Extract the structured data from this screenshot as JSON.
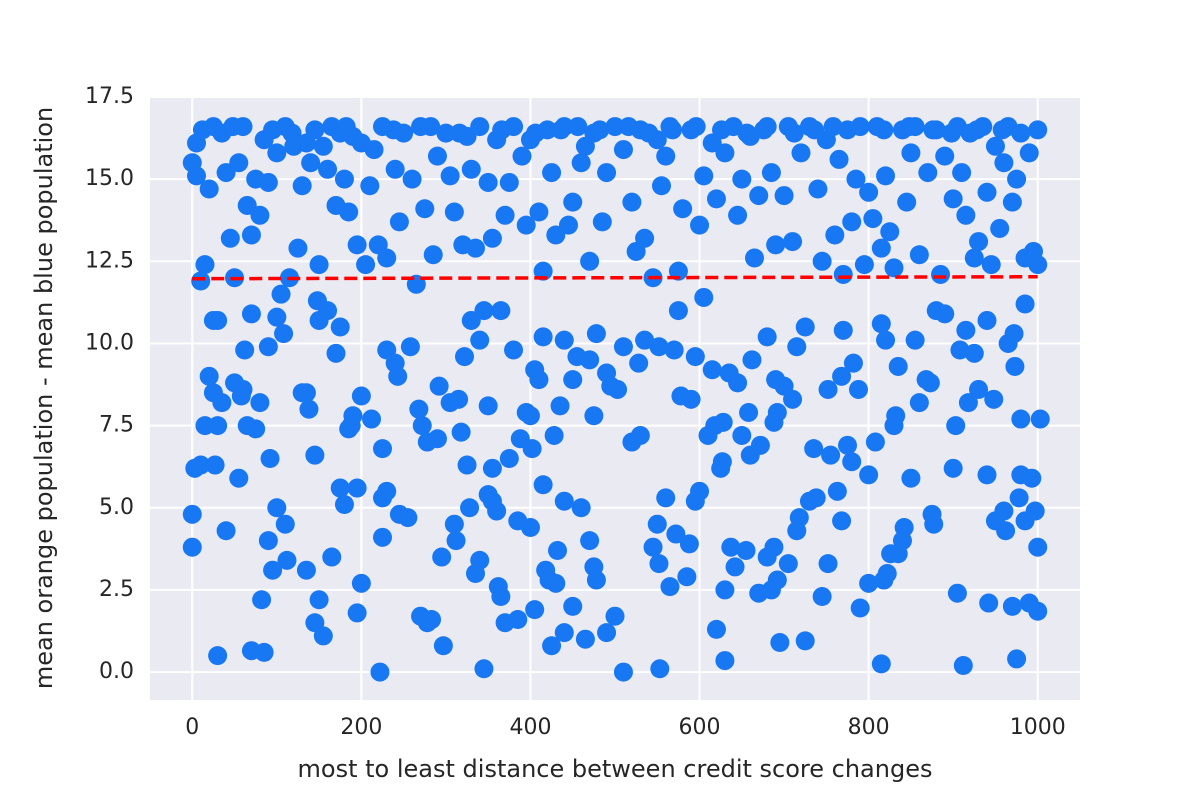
{
  "chart_data": {
    "type": "scatter",
    "x_label": "most to least distance between credit score changes",
    "y_label": "mean orange population - mean blue population",
    "color": "#1877f2",
    "x": [
      0,
      0,
      3,
      10,
      27,
      30,
      40,
      55,
      70,
      85,
      82,
      90,
      95,
      100,
      110,
      112,
      135,
      145,
      150,
      155,
      165,
      175,
      180,
      195,
      195,
      200,
      222,
      225,
      225,
      230,
      245,
      255,
      270,
      278,
      283,
      295,
      297,
      310,
      312,
      325,
      328,
      335,
      340,
      345,
      350,
      355,
      360,
      362,
      365,
      370,
      385,
      385,
      400,
      405,
      415,
      418,
      422,
      425,
      430,
      432,
      440,
      440,
      450,
      460,
      465,
      470,
      475,
      478,
      490,
      500,
      510,
      530,
      545,
      552,
      553,
      550,
      560,
      565,
      572,
      585,
      588,
      600,
      595,
      620,
      627,
      630,
      630,
      637,
      642,
      655,
      660,
      670,
      680,
      685,
      688,
      692,
      695,
      705,
      715,
      718,
      725,
      730,
      738,
      745,
      752,
      763,
      768,
      780,
      790,
      800,
      815,
      818,
      822,
      826,
      835,
      840,
      842,
      850,
      875,
      877,
      905,
      912,
      940,
      942,
      950,
      960,
      962,
      970,
      975,
      978,
      985,
      990,
      993,
      997,
      1000,
      1000,
      980,
      15,
      20,
      25,
      25,
      30,
      30,
      35,
      50,
      58,
      60,
      62,
      65,
      70,
      75,
      80,
      90,
      92,
      100,
      105,
      108,
      130,
      135,
      138,
      145,
      148,
      150,
      160,
      170,
      175,
      185,
      190,
      188,
      200,
      212,
      225,
      230,
      240,
      243,
      258,
      268,
      272,
      278,
      290,
      292,
      305,
      315,
      318,
      322,
      330,
      340,
      345,
      350,
      355,
      365,
      375,
      380,
      388,
      395,
      400,
      402,
      405,
      410,
      415,
      428,
      435,
      440,
      450,
      455,
      470,
      475,
      478,
      490,
      495,
      503,
      510,
      520,
      528,
      535,
      552,
      570,
      575,
      578,
      590,
      595,
      605,
      610,
      615,
      618,
      625,
      628,
      635,
      645,
      650,
      658,
      662,
      672,
      680,
      688,
      690,
      692,
      700,
      710,
      715,
      725,
      735,
      752,
      755,
      768,
      770,
      775,
      782,
      788,
      800,
      808,
      815,
      820,
      830,
      832,
      835,
      855,
      860,
      868,
      873,
      880,
      890,
      900,
      903,
      908,
      915,
      918,
      925,
      930,
      940,
      948,
      965,
      972,
      973,
      980,
      985,
      1003,
      0,
      5,
      5,
      10,
      15,
      20,
      25,
      35,
      40,
      45,
      50,
      55,
      60,
      65,
      70,
      75,
      80,
      85,
      90,
      100,
      110,
      115,
      120,
      125,
      130,
      140,
      145,
      150,
      155,
      160,
      165,
      170,
      175,
      180,
      185,
      190,
      195,
      200,
      205,
      210,
      215,
      220,
      225,
      230,
      240,
      245,
      250,
      260,
      265,
      270,
      275,
      285,
      290,
      300,
      305,
      310,
      320,
      325,
      330,
      335,
      340,
      350,
      355,
      360,
      370,
      375,
      380,
      390,
      395,
      400,
      410,
      415,
      420,
      425,
      430,
      440,
      445,
      450,
      460,
      465,
      470,
      475,
      485,
      490,
      500,
      510,
      520,
      525,
      530,
      535,
      545,
      550,
      555,
      560,
      565,
      575,
      580,
      590,
      600,
      605,
      615,
      620,
      630,
      640,
      645,
      650,
      660,
      665,
      670,
      680,
      685,
      690,
      700,
      705,
      710,
      720,
      730,
      740,
      745,
      750,
      760,
      765,
      770,
      775,
      780,
      785,
      790,
      795,
      800,
      805,
      810,
      815,
      820,
      825,
      830,
      840,
      845,
      850,
      855,
      860,
      870,
      880,
      885,
      890,
      900,
      905,
      910,
      915,
      920,
      925,
      930,
      935,
      940,
      945,
      950,
      955,
      960,
      965,
      970,
      975,
      980,
      985,
      990,
      995,
      1000,
      1000,
      12,
      48,
      95,
      118,
      135,
      182,
      238,
      282,
      316,
      366,
      406,
      436,
      456,
      482,
      516,
      540,
      568,
      596,
      626,
      656,
      676,
      712,
      736,
      758,
      818,
      848,
      876,
      898,
      928,
      958
    ],
    "y": [
      4.8,
      3.8,
      6.2,
      6.3,
      6.3,
      0.5,
      4.3,
      5.9,
      0.65,
      0.6,
      2.2,
      4.0,
      3.1,
      5.0,
      4.5,
      3.4,
      3.1,
      1.5,
      2.2,
      1.1,
      3.5,
      5.6,
      5.1,
      5.6,
      1.8,
      2.7,
      0.0,
      4.1,
      5.3,
      5.5,
      4.8,
      4.7,
      1.7,
      1.5,
      1.6,
      3.5,
      0.8,
      4.5,
      4.0,
      6.3,
      5.0,
      3.0,
      3.4,
      0.1,
      5.4,
      5.2,
      4.9,
      2.6,
      2.3,
      1.5,
      1.6,
      4.6,
      4.4,
      1.9,
      5.7,
      3.1,
      2.8,
      0.8,
      2.7,
      3.7,
      1.2,
      5.2,
      2.0,
      5.0,
      1.0,
      4.0,
      3.2,
      2.8,
      1.2,
      1.7,
      0.0,
      7.2,
      3.8,
      3.3,
      0.1,
      4.5,
      5.3,
      2.6,
      4.2,
      2.9,
      3.9,
      5.5,
      5.2,
      1.3,
      6.4,
      0.35,
      2.5,
      3.8,
      3.2,
      3.7,
      6.6,
      2.4,
      3.5,
      2.5,
      3.8,
      2.8,
      0.9,
      3.3,
      4.3,
      4.7,
      0.95,
      5.2,
      5.3,
      2.3,
      3.3,
      5.5,
      4.6,
      6.4,
      1.95,
      2.7,
      0.25,
      2.8,
      3.0,
      3.6,
      3.6,
      4.0,
      4.4,
      5.9,
      4.8,
      4.5,
      2.4,
      0.2,
      6.0,
      2.1,
      4.6,
      4.9,
      4.3,
      2.0,
      0.4,
      5.3,
      4.6,
      2.1,
      5.9,
      4.9,
      3.8,
      1.85,
      6.0,
      7.5,
      9.0,
      8.5,
      10.7,
      10.7,
      7.5,
      8.2,
      8.8,
      8.4,
      8.6,
      9.8,
      7.5,
      10.9,
      7.4,
      8.2,
      9.9,
      6.5,
      10.8,
      11.5,
      10.3,
      8.5,
      8.5,
      8.0,
      6.6,
      11.3,
      10.7,
      11.0,
      9.7,
      10.5,
      7.4,
      7.8,
      7.5,
      8.4,
      7.7,
      6.8,
      9.8,
      9.4,
      9.0,
      9.9,
      8.0,
      7.5,
      7.0,
      7.1,
      8.7,
      8.2,
      8.3,
      7.3,
      9.6,
      10.7,
      10.1,
      11.0,
      8.1,
      6.2,
      11.0,
      6.5,
      9.8,
      7.1,
      7.9,
      7.8,
      6.8,
      9.2,
      8.9,
      10.2,
      7.2,
      8.1,
      10.1,
      8.9,
      9.6,
      9.5,
      7.8,
      10.3,
      9.1,
      8.7,
      8.6,
      9.9,
      7.0,
      9.4,
      10.1,
      9.9,
      9.8,
      11.0,
      8.4,
      8.3,
      9.6,
      11.4,
      7.2,
      9.2,
      7.5,
      6.2,
      7.6,
      9.1,
      8.8,
      7.2,
      7.9,
      9.5,
      6.9,
      10.2,
      7.6,
      8.9,
      7.9,
      8.7,
      8.3,
      9.9,
      10.5,
      6.8,
      8.6,
      6.6,
      9.0,
      10.4,
      6.9,
      9.4,
      8.6,
      6.0,
      7.0,
      10.6,
      10.1,
      7.5,
      7.8,
      9.3,
      10.1,
      8.2,
      8.9,
      8.8,
      11.0,
      10.9,
      6.2,
      7.5,
      9.8,
      10.4,
      8.2,
      9.7,
      8.6,
      10.7,
      8.3,
      10.0,
      10.3,
      9.3,
      7.7,
      11.2,
      7.7,
      15.5,
      16.1,
      15.1,
      11.9,
      12.4,
      14.7,
      16.6,
      16.4,
      15.2,
      13.2,
      12.0,
      15.5,
      16.6,
      14.2,
      13.3,
      15.0,
      13.9,
      16.2,
      14.9,
      15.8,
      16.6,
      12.0,
      16.0,
      12.9,
      14.8,
      15.5,
      16.5,
      12.4,
      16.0,
      15.3,
      16.6,
      14.2,
      16.4,
      15.0,
      14.0,
      16.3,
      13.0,
      16.1,
      12.4,
      14.8,
      15.9,
      13.0,
      16.6,
      12.6,
      15.3,
      13.7,
      16.4,
      15.0,
      11.8,
      16.6,
      14.1,
      12.7,
      15.7,
      16.4,
      15.1,
      14.0,
      13.0,
      16.3,
      15.3,
      12.9,
      16.6,
      14.9,
      13.2,
      16.2,
      13.9,
      14.9,
      16.6,
      15.7,
      13.6,
      16.2,
      14.0,
      12.2,
      16.5,
      15.2,
      13.3,
      16.6,
      13.6,
      14.3,
      15.5,
      16.0,
      12.5,
      16.4,
      13.7,
      15.2,
      16.6,
      15.9,
      14.3,
      12.8,
      16.5,
      13.2,
      12.0,
      16.2,
      14.8,
      15.7,
      16.6,
      12.2,
      14.1,
      16.5,
      13.6,
      15.1,
      16.1,
      14.4,
      15.8,
      16.6,
      13.9,
      15.0,
      16.3,
      12.6,
      14.5,
      16.6,
      15.2,
      13.0,
      14.5,
      16.6,
      13.1,
      15.8,
      16.6,
      14.7,
      12.5,
      16.2,
      13.3,
      15.6,
      12.1,
      16.5,
      13.7,
      15.0,
      16.6,
      12.4,
      14.6,
      13.8,
      16.6,
      12.9,
      15.1,
      13.4,
      12.3,
      16.5,
      14.3,
      15.8,
      16.6,
      12.7,
      15.2,
      16.5,
      12.1,
      15.7,
      14.4,
      16.6,
      15.2,
      13.9,
      16.4,
      12.6,
      13.1,
      16.6,
      14.6,
      12.4,
      16.0,
      13.5,
      15.5,
      16.6,
      14.3,
      15.0,
      16.4,
      12.6,
      15.8,
      12.8,
      16.5,
      12.4,
      16.5,
      16.6,
      16.5,
      16.4,
      16.1,
      16.6,
      16.5,
      16.6,
      16.4,
      16.5,
      16.4,
      16.5,
      16.6,
      16.5,
      16.6,
      16.4,
      16.5,
      16.6,
      16.5,
      16.4,
      16.5,
      16.4,
      16.5,
      16.6,
      16.5,
      16.6,
      16.5,
      16.4,
      16.5,
      16.5
    ],
    "trend": {
      "x": [
        0,
        1000
      ],
      "y": [
        11.97,
        12.03
      ],
      "color": "#ff0000",
      "style": "dashed"
    },
    "xlim": [
      -50,
      1050
    ],
    "xticks": [
      0,
      200,
      400,
      600,
      800,
      1000
    ],
    "ylim": [
      -0.85,
      17.5
    ],
    "yticks": [
      {
        "value": 0,
        "label": "0.0"
      },
      2.5,
      {
        "value": 5,
        "label": "5.0"
      },
      7.5,
      {
        "value": 10,
        "label": "10.0"
      },
      12.5,
      {
        "value": 15,
        "label": "15.0"
      },
      17.5
    ],
    "grid": true,
    "background": "#eaeaf2"
  }
}
